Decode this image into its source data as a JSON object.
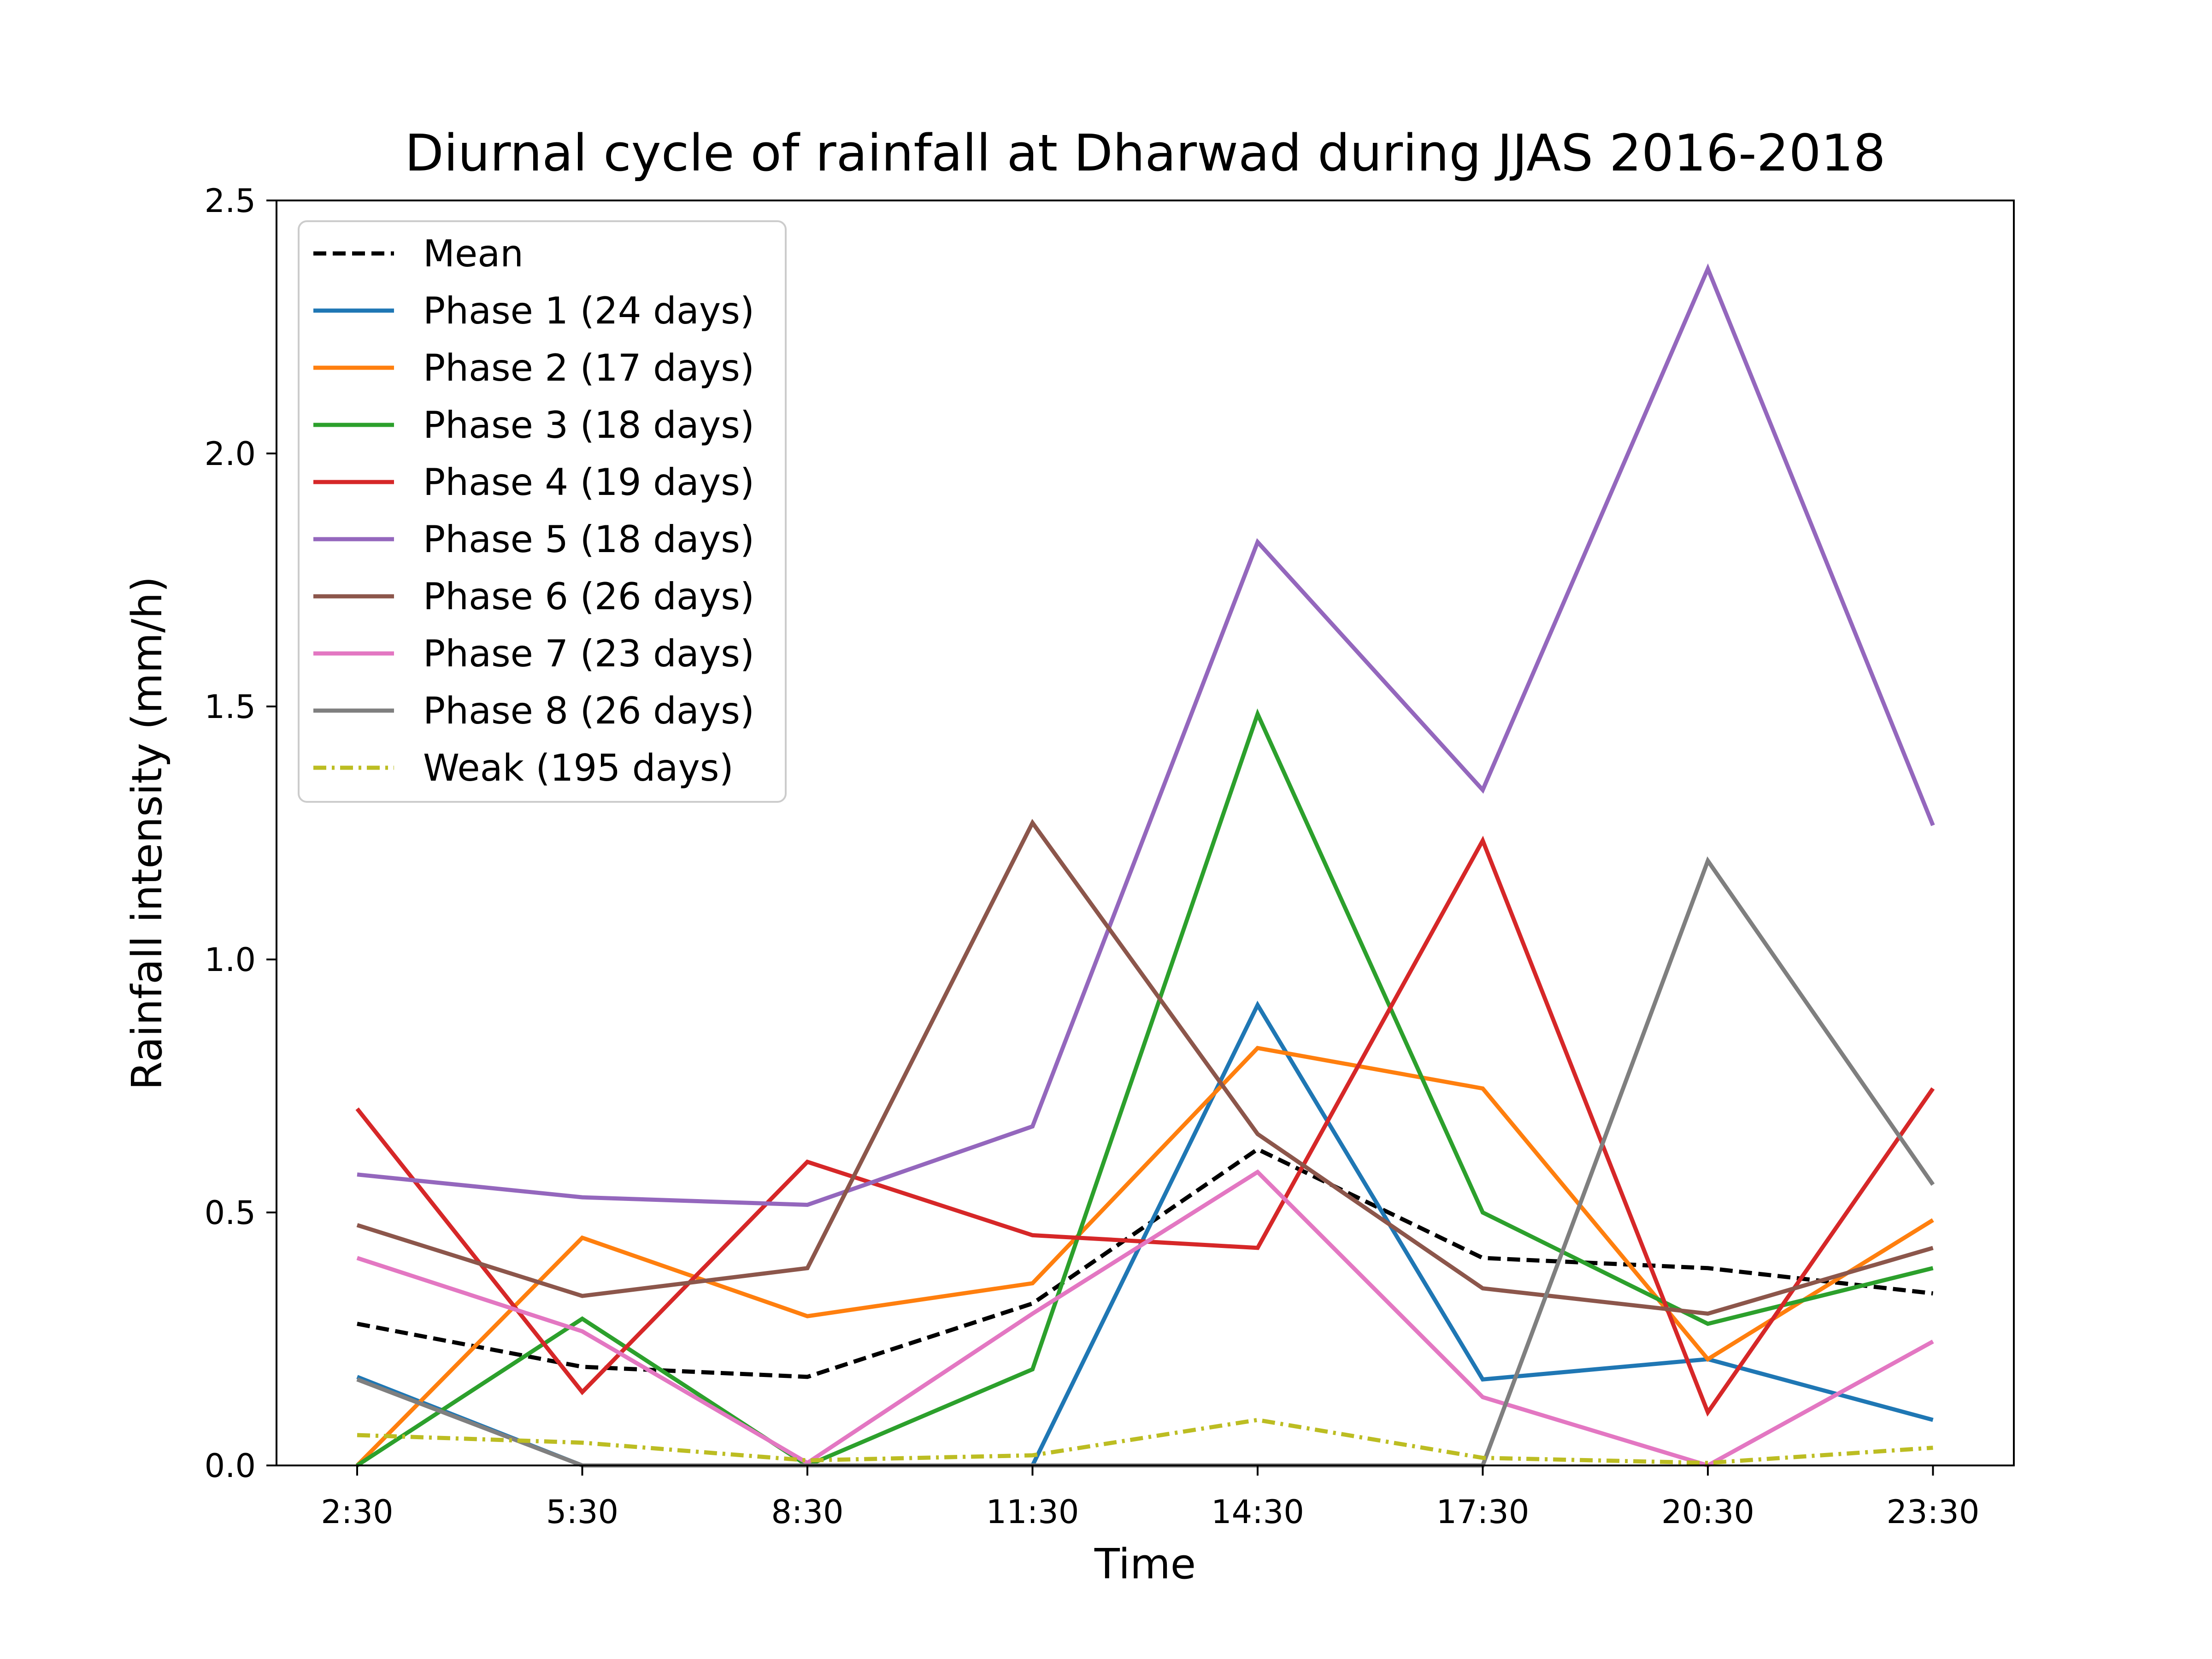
{
  "chart_data": {
    "type": "line",
    "title": "Diurnal cycle of rainfall at Dharwad during JJAS 2016-2018",
    "xlabel": "Time",
    "ylabel": "Rainfall intensity (mm/h)",
    "categories": [
      "2:30",
      "5:30",
      "8:30",
      "11:30",
      "14:30",
      "17:30",
      "20:30",
      "23:30"
    ],
    "ylim": [
      0,
      2.5
    ],
    "yticks": [
      "0.0",
      "0.5",
      "1.0",
      "1.5",
      "2.0",
      "2.5"
    ],
    "grid": false,
    "legend_position": "top-left",
    "series": [
      {
        "name": "Mean",
        "color": "#000000",
        "dash": "dashed",
        "values": [
          0.28,
          0.195,
          0.175,
          0.32,
          0.625,
          0.41,
          0.39,
          0.34
        ]
      },
      {
        "name": "Phase 1 (24 days)",
        "color": "#1f77b4",
        "dash": "solid",
        "values": [
          0.175,
          0.0,
          0.0,
          0.0,
          0.91,
          0.17,
          0.21,
          0.09
        ]
      },
      {
        "name": "Phase 2 (17 days)",
        "color": "#ff7f0e",
        "dash": "solid",
        "values": [
          0.0,
          0.45,
          0.295,
          0.36,
          0.825,
          0.745,
          0.21,
          0.485
        ]
      },
      {
        "name": "Phase 3 (18 days)",
        "color": "#2ca02c",
        "dash": "solid",
        "values": [
          0.0,
          0.29,
          0.0,
          0.19,
          1.485,
          0.5,
          0.28,
          0.39
        ]
      },
      {
        "name": "Phase 4 (19 days)",
        "color": "#d62728",
        "dash": "solid",
        "values": [
          0.705,
          0.145,
          0.6,
          0.455,
          0.43,
          1.235,
          0.105,
          0.745
        ]
      },
      {
        "name": "Phase 5 (18 days)",
        "color": "#9467bd",
        "dash": "solid",
        "values": [
          0.575,
          0.53,
          0.515,
          0.67,
          1.825,
          1.335,
          2.365,
          1.265
        ]
      },
      {
        "name": "Phase 6 (26 days)",
        "color": "#8c564b",
        "dash": "solid",
        "values": [
          0.475,
          0.335,
          0.39,
          1.27,
          0.655,
          0.35,
          0.3,
          0.43
        ]
      },
      {
        "name": "Phase 7 (23 days)",
        "color": "#e377c2",
        "dash": "solid",
        "values": [
          0.41,
          0.265,
          0.005,
          0.3,
          0.58,
          0.135,
          0.0,
          0.245
        ]
      },
      {
        "name": "Phase 8 (26 days)",
        "color": "#7f7f7f",
        "dash": "solid",
        "values": [
          0.17,
          0.0,
          0.0,
          0.0,
          0.0,
          0.0,
          1.195,
          0.555
        ]
      },
      {
        "name": "Weak (195 days)",
        "color": "#bcbd22",
        "dash": "dashdot",
        "values": [
          0.06,
          0.045,
          0.01,
          0.02,
          0.09,
          0.015,
          0.005,
          0.035
        ]
      }
    ]
  }
}
